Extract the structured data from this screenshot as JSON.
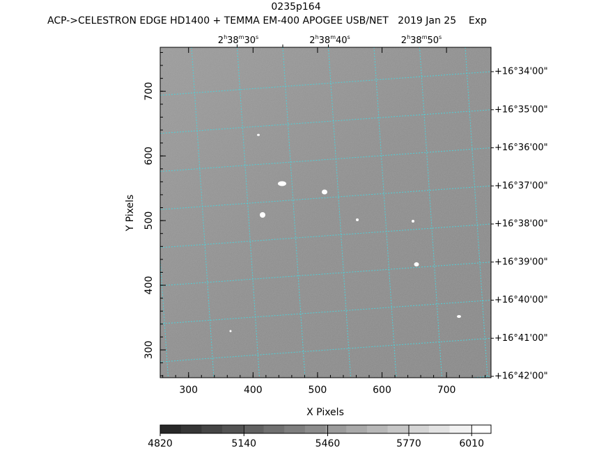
{
  "chart_data": {
    "type": "image",
    "title": "0235p164",
    "subtitle": "ACP->CELESTRON EDGE HD1400 + TEMMA EM-400 APOGEE USB/NET   2019 Jan 25    Exp",
    "x_label": "X Pixels",
    "y_label": "Y Pixels",
    "xlim": [
      256,
      769
    ],
    "ylim": [
      257,
      768
    ],
    "xticks": [
      300,
      400,
      500,
      600,
      700
    ],
    "yticks": [
      300,
      400,
      500,
      600,
      700
    ],
    "ra_labels": [
      [
        "2",
        "h",
        "38",
        "m",
        "30",
        "s"
      ],
      [
        "2",
        "h",
        "38",
        "m",
        "40",
        "s"
      ],
      [
        "2",
        "h",
        "38",
        "m",
        "50",
        "s"
      ]
    ],
    "dec_labels": [
      "+16°34'00\"",
      "+16°35'00\"",
      "+16°36'00\"",
      "+16°37'00\"",
      "+16°38'00\"",
      "+16°39'00\"",
      "+16°40'00\"",
      "+16°41'00\"",
      "+16°42'00\""
    ],
    "colorbar": {
      "lim": [
        4820,
        6084
      ],
      "ticks": [
        4820,
        5140,
        5460,
        5770,
        6010
      ]
    },
    "grid_color": "#4fd0d8"
  }
}
